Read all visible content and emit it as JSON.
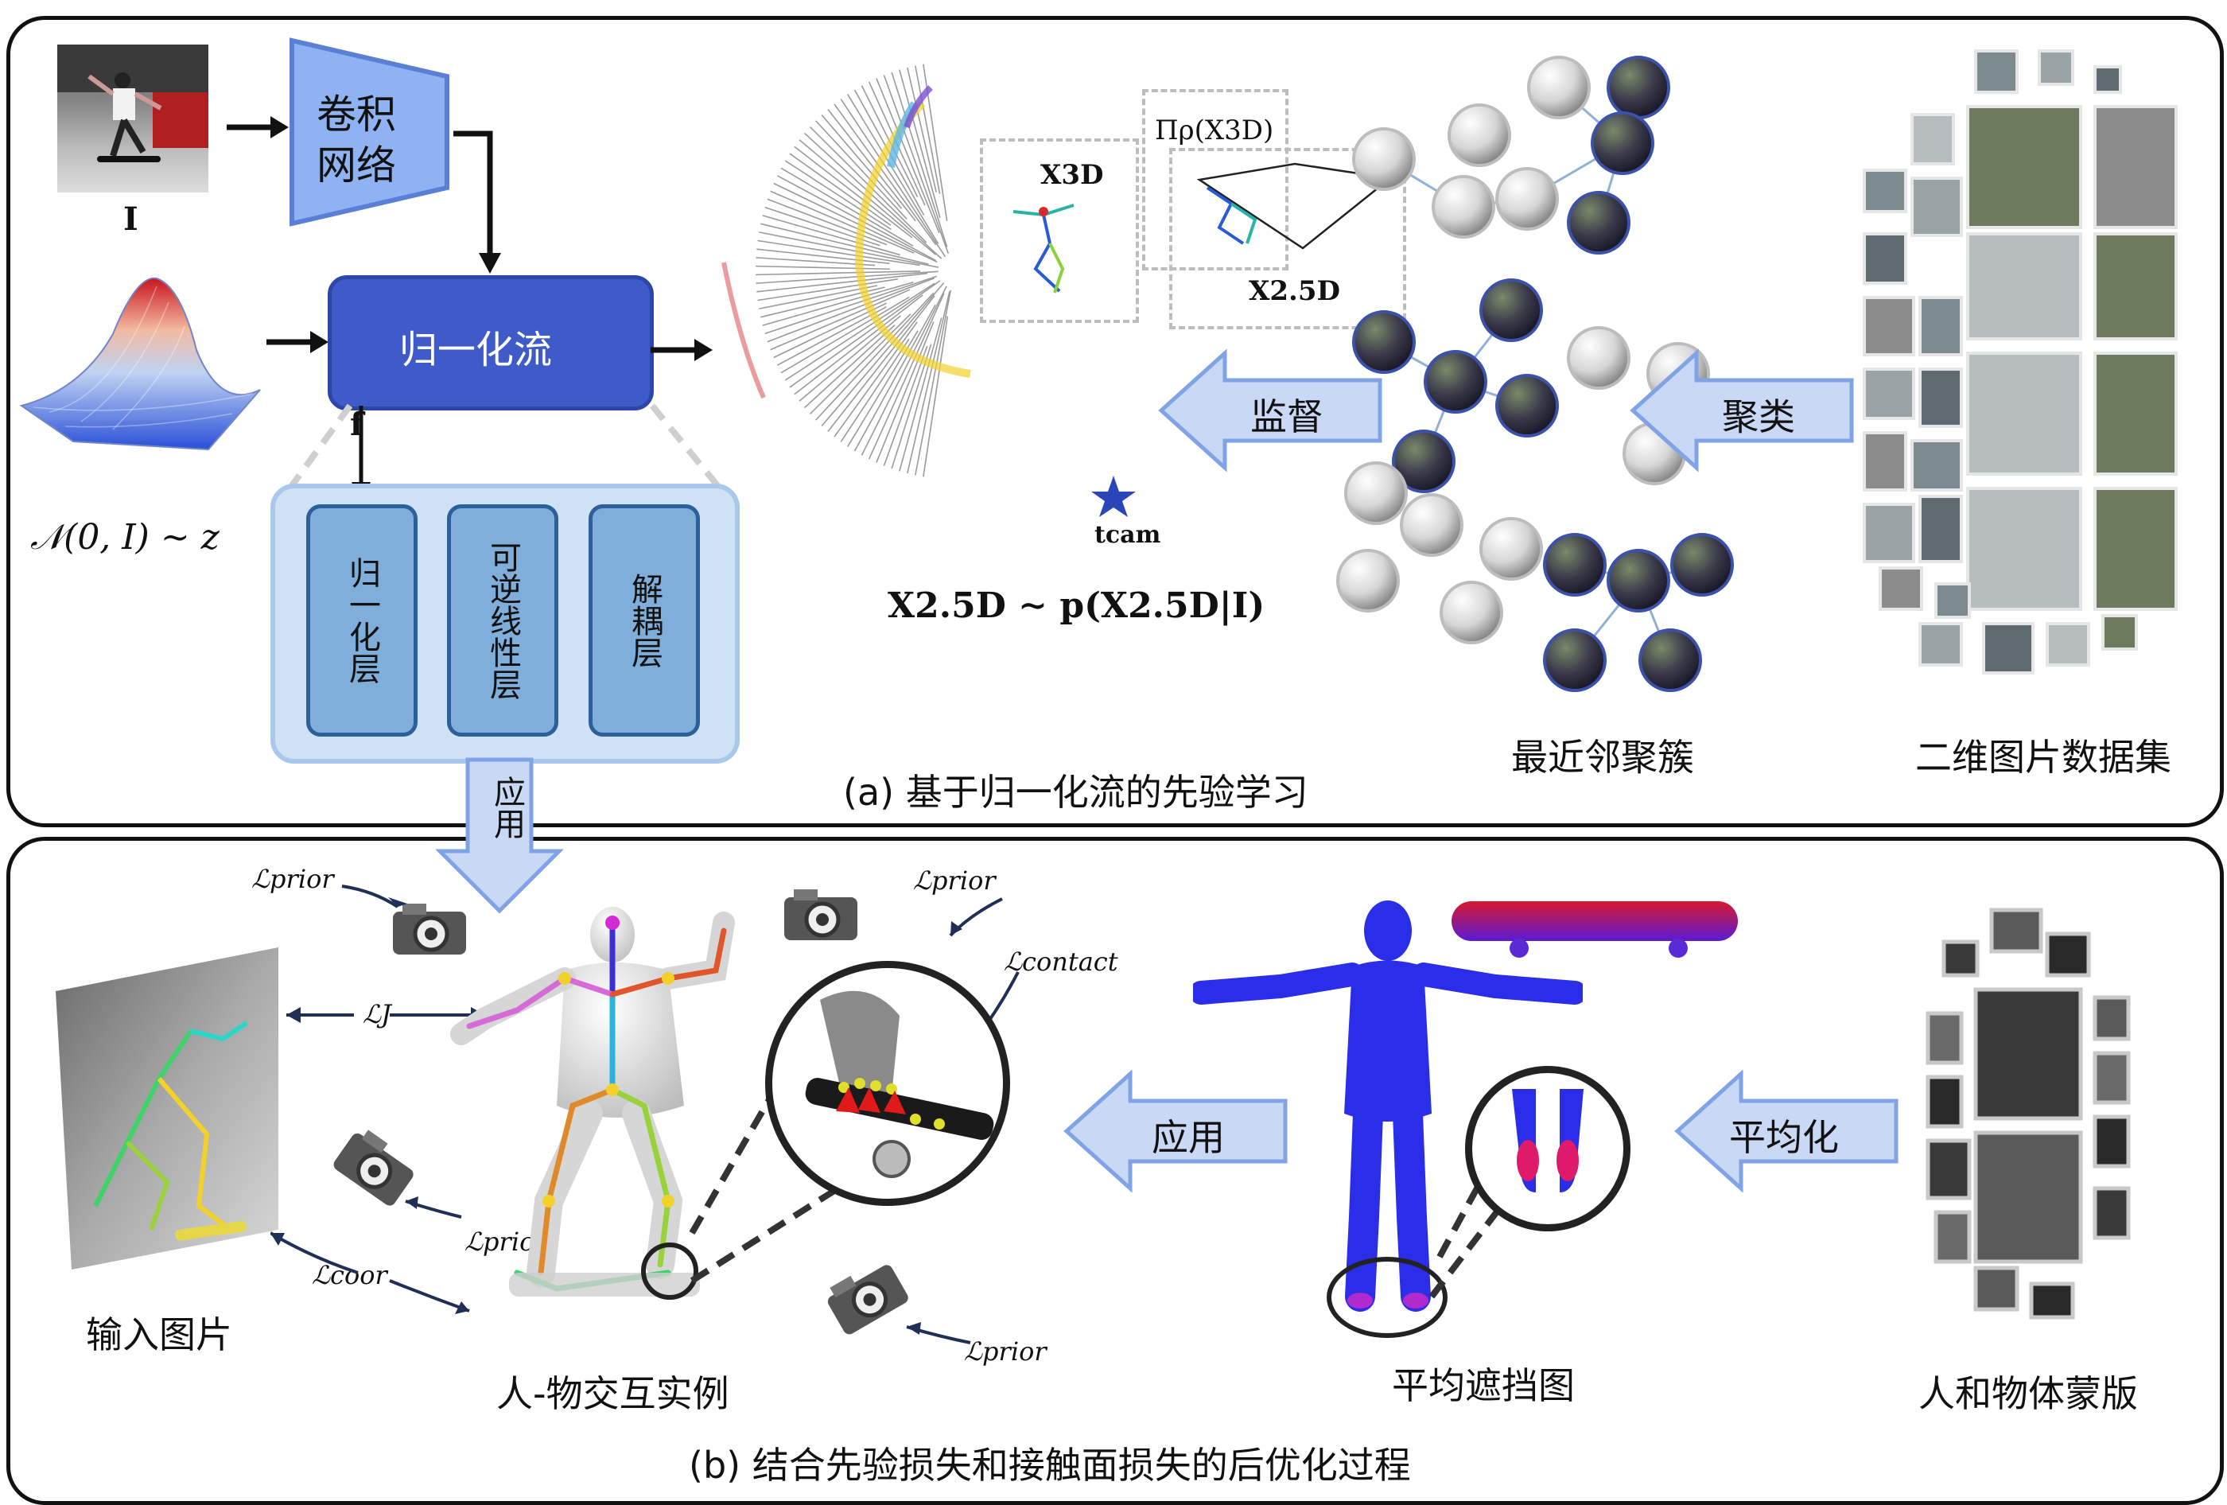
{
  "panel_a": {
    "input_label": "I",
    "cnn_label_line1": "卷积",
    "cnn_label_line2": "网络",
    "flow_label": "归一化流",
    "f_label": "f",
    "gaussian_label": "𝒩(0, I) ∼ z",
    "layers": [
      "归一化层",
      "可逆线性层",
      "解耦层"
    ],
    "x3d_label": "X3D",
    "proj_label": "Πρ(X3D)",
    "x25d_label": "X2.5D",
    "tcam_label": "tcam",
    "distribution_label": "X2.5D ∼ p(X2.5D|I)",
    "supervise_label": "监督",
    "cluster_label": "聚类",
    "nn_cluster_caption": "最近邻聚簇",
    "dataset_caption": "二维图片数据集",
    "panel_caption": "(a)  基于归一化流的先验学习"
  },
  "panel_b": {
    "apply_down_label": "应用",
    "l_prior": "ℒprior",
    "l_j": "ℒJ",
    "l_coor": "ℒcoor",
    "l_contact": "ℒcontact",
    "input_image_caption": "输入图片",
    "hoi_caption": "人-物交互实例",
    "apply_label": "应用",
    "avg_label": "平均化",
    "occlusion_caption": "平均遮挡图",
    "mask_caption": "人和物体蒙版",
    "panel_caption": "(b)  结合先验损失和接触面损失的后优化过程"
  },
  "colors": {
    "flow_fill": "#3f5bc9",
    "cnn_fill": "#8fb3f2",
    "arrow_fill": "#c9d9f5",
    "arrow_stroke": "#7fa3e6",
    "layer_fill": "#7faedb",
    "group_fill": "#cfe1f4",
    "body_blue": "#2a2ee8",
    "skateboard_red": "#d8182c"
  }
}
